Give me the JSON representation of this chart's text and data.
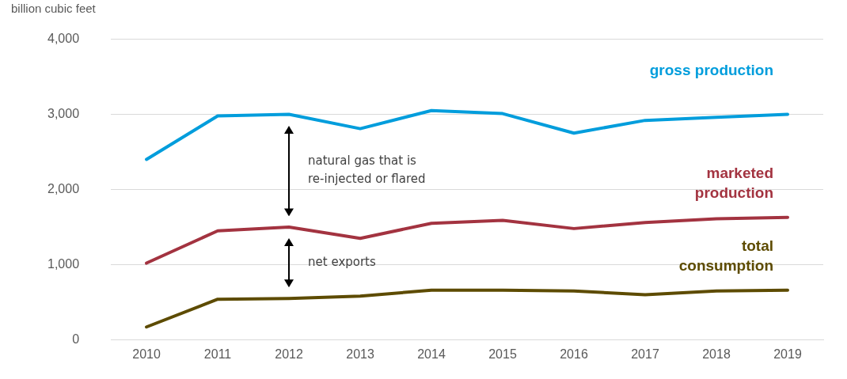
{
  "chart_data": {
    "type": "line",
    "ylabel": "billion cubic feet",
    "categories": [
      "2010",
      "2011",
      "2012",
      "2013",
      "2014",
      "2015",
      "2016",
      "2017",
      "2018",
      "2019"
    ],
    "series": [
      {
        "name": "gross production",
        "color": "#009ddc",
        "values": [
          2400,
          2980,
          3000,
          2810,
          3050,
          3010,
          2750,
          2920,
          2960,
          3000
        ]
      },
      {
        "name": "marketed production",
        "color": "#a33340",
        "values": [
          1020,
          1450,
          1500,
          1350,
          1550,
          1590,
          1480,
          1560,
          1610,
          1630
        ]
      },
      {
        "name": "total consumption",
        "color": "#5d4b00",
        "values": [
          170,
          540,
          550,
          580,
          660,
          660,
          650,
          600,
          650,
          660
        ]
      }
    ],
    "annotations": [
      "natural gas that is re-injected or flared",
      "net exports"
    ],
    "ylim": [
      0,
      4000
    ],
    "yticks": [
      0,
      {
        "value": 1000,
        "label": "1,000"
      },
      {
        "value": 2000,
        "label": "2,000"
      },
      {
        "value": 3000,
        "label": "3,000"
      },
      {
        "value": 4000,
        "label": "4,000"
      }
    ],
    "grid": "y",
    "legend": false,
    "marker": "none",
    "line_style": "solid"
  }
}
